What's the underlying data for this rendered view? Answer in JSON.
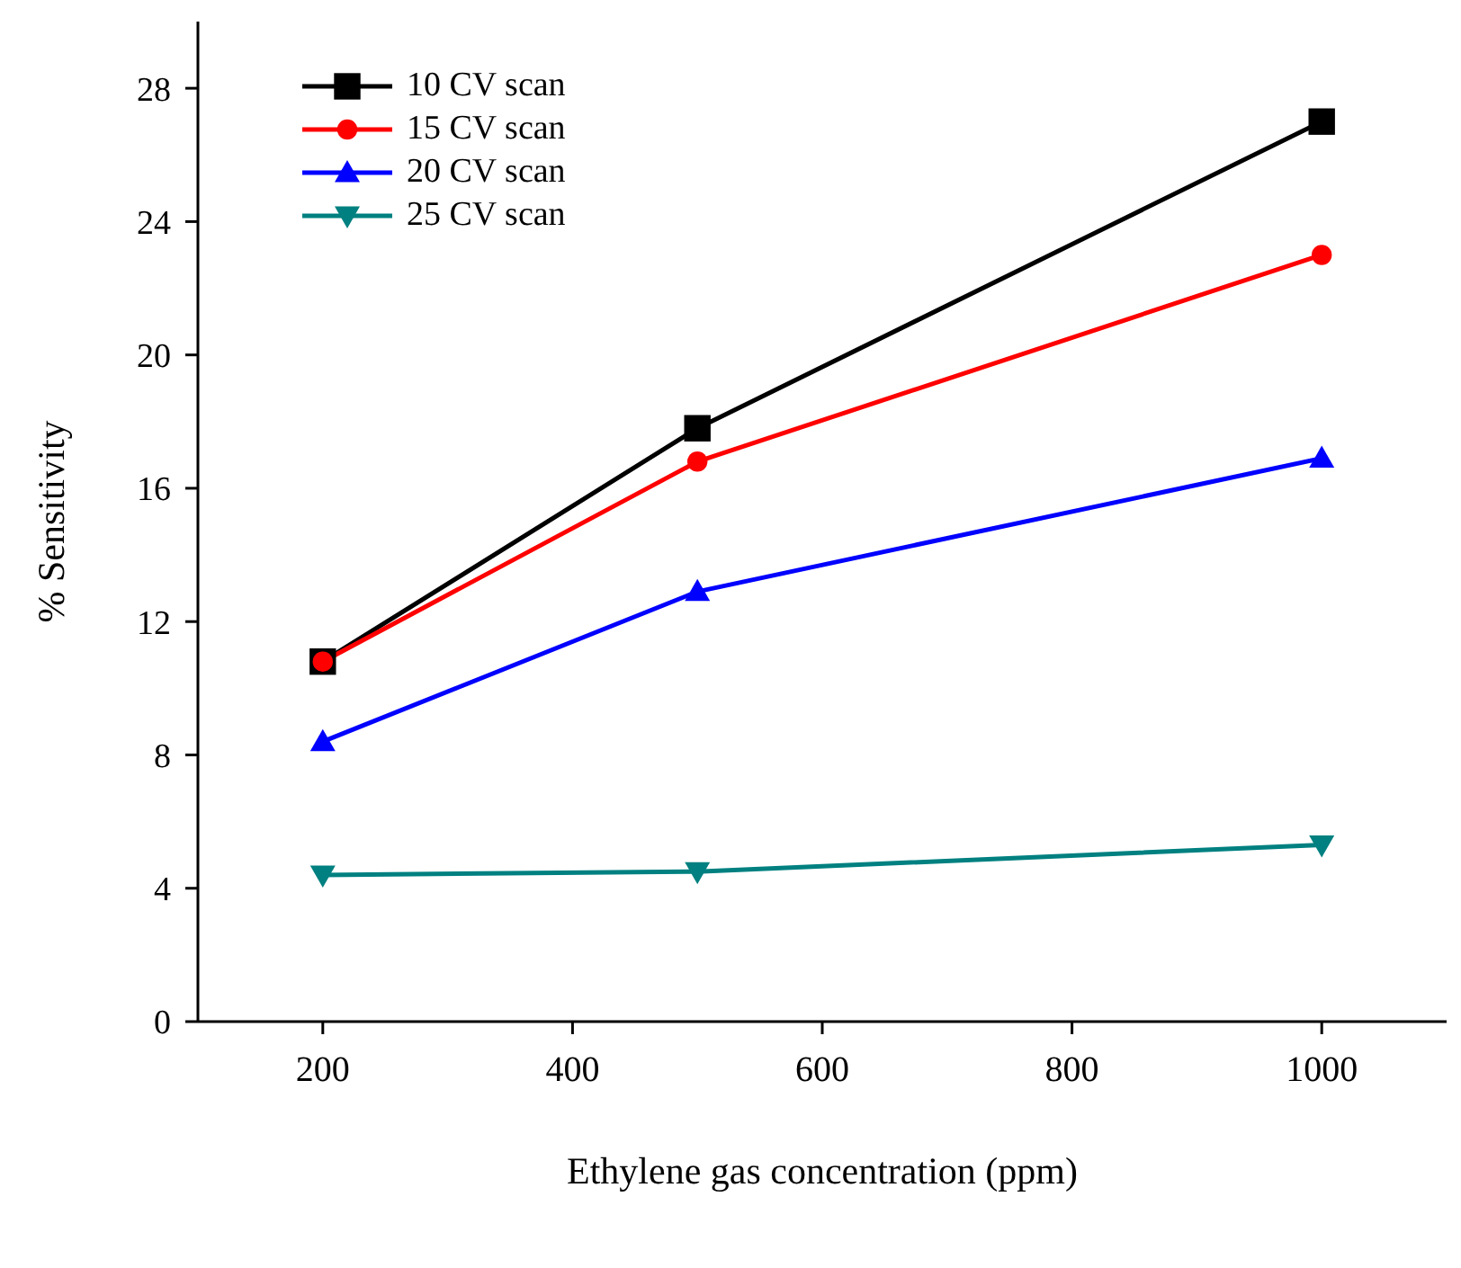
{
  "chart_data": {
    "type": "line",
    "xlabel": "Ethylene gas concentration (ppm)",
    "ylabel": "% Sensitivity",
    "x": [
      200,
      500,
      1000
    ],
    "series": [
      {
        "name": "10 CV scan",
        "color": "#000000",
        "marker": "square",
        "values": [
          10.8,
          17.8,
          27.0
        ]
      },
      {
        "name": "15 CV scan",
        "color": "#ff0000",
        "marker": "circle",
        "values": [
          10.8,
          16.8,
          23.0
        ]
      },
      {
        "name": "20 CV scan",
        "color": "#0000ff",
        "marker": "triangle",
        "values": [
          8.4,
          12.9,
          16.9
        ]
      },
      {
        "name": "25 CV scan",
        "color": "#008080",
        "marker": "triangle-down",
        "values": [
          4.4,
          4.5,
          5.3
        ]
      }
    ],
    "xlim": [
      100,
      1100
    ],
    "xticks": [
      200,
      400,
      600,
      800,
      1000
    ],
    "ylim": [
      0,
      30
    ],
    "yticks": [
      0,
      4,
      8,
      12,
      16,
      20,
      24,
      28
    ],
    "grid": false,
    "legend": "top left",
    "line_style": "solid"
  }
}
